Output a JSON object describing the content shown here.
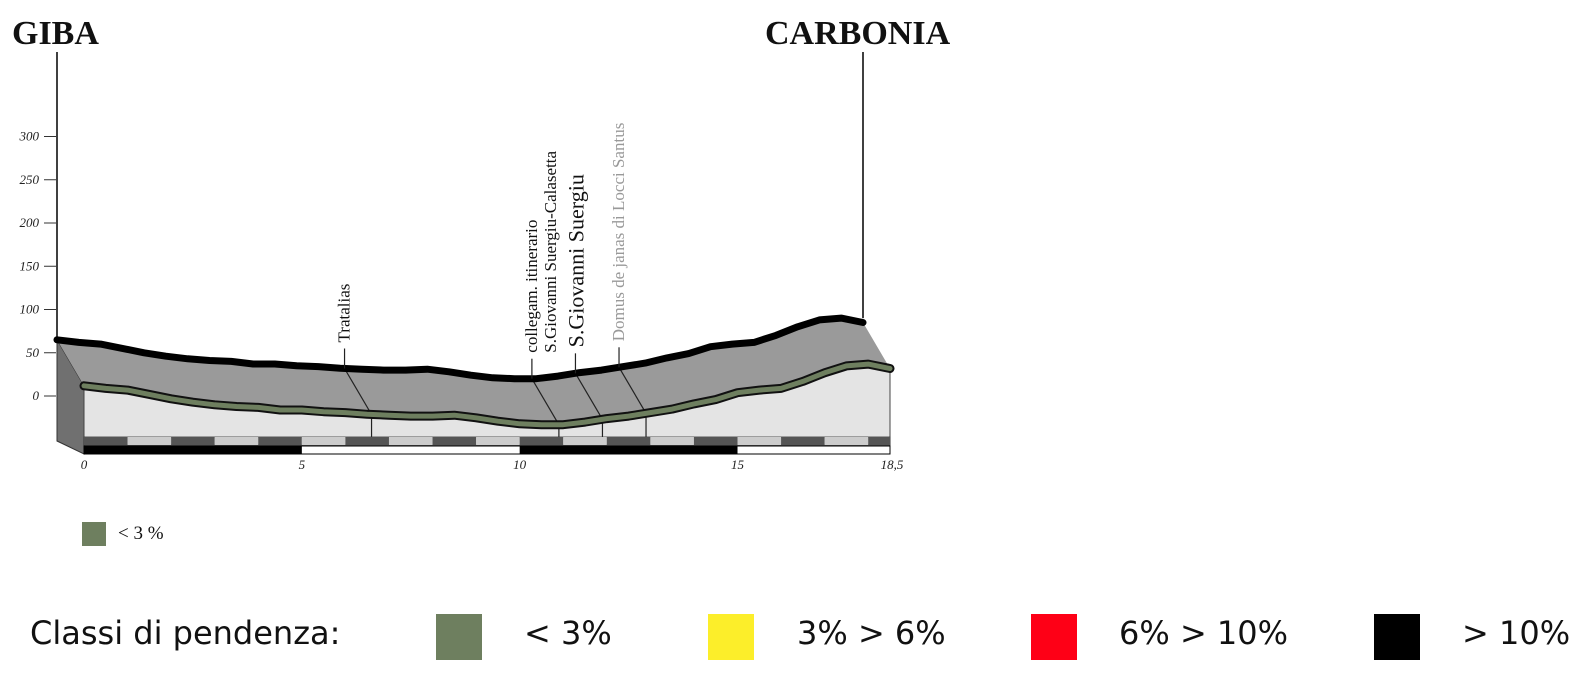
{
  "chart_data": {
    "type": "area",
    "title": "",
    "xlabel": "",
    "ylabel": "",
    "start_place": "GIBA",
    "end_place": "CARBONIA",
    "xlim": [
      0,
      18.5
    ],
    "ylim": [
      0,
      300
    ],
    "x_ticks": [
      {
        "value": 0,
        "label": "0"
      },
      {
        "value": 5,
        "label": "5"
      },
      {
        "value": 10,
        "label": "10"
      },
      {
        "value": 15,
        "label": "15"
      },
      {
        "value": 18.5,
        "label": "18,5"
      }
    ],
    "y_ticks": [
      {
        "value": 300,
        "label": "300"
      },
      {
        "value": 250,
        "label": "250"
      },
      {
        "value": 200,
        "label": "200"
      },
      {
        "value": 150,
        "label": "150"
      },
      {
        "value": 100,
        "label": "100"
      },
      {
        "value": 50,
        "label": "50"
      },
      {
        "value": 0,
        "label": "0"
      }
    ],
    "series": [
      {
        "x": [
          0,
          0.5,
          1,
          1.5,
          2,
          2.5,
          3,
          3.5,
          4,
          4.5,
          5,
          5.5,
          6,
          6.5,
          7,
          7.5,
          8,
          8.5,
          9,
          9.5,
          10,
          10.5,
          11,
          11.5,
          12,
          12.5,
          13,
          13.5,
          14,
          14.5,
          15,
          15.5,
          16,
          16.5,
          17,
          17.5,
          18,
          18.5
        ],
        "y": [
          65,
          62,
          60,
          55,
          50,
          46,
          43,
          41,
          40,
          37,
          37,
          35,
          34,
          32,
          31,
          30,
          30,
          31,
          28,
          24,
          21,
          20,
          20,
          23,
          27,
          30,
          34,
          38,
          44,
          49,
          57,
          60,
          62,
          70,
          80,
          88,
          90,
          85
        ]
      }
    ],
    "points_of_interest": [
      {
        "x": 6.6,
        "label": "Tratalias",
        "style": "normal"
      },
      {
        "x": 10.9,
        "label": "collegam. itinerario",
        "label2": "S.Giovanni Suergiu-Calasetta",
        "style": "normal"
      },
      {
        "x": 11.9,
        "label": "S.Giovanni Suergiu",
        "style": "large"
      },
      {
        "x": 12.9,
        "label": "Domus de janas di Locci Santus",
        "style": "grey"
      }
    ],
    "legend_small": {
      "color": "#6e7f5f",
      "label": "< 3 %"
    }
  },
  "legend": {
    "title": "Classi di pendenza:",
    "items": [
      {
        "color": "#6e7f5f",
        "label": "< 3%"
      },
      {
        "color": "#fcee2a",
        "label": "3% > 6%"
      },
      {
        "color": "#fe0016",
        "label": "6% > 10%"
      },
      {
        "color": "#000000",
        "label": "> 10%"
      }
    ]
  }
}
